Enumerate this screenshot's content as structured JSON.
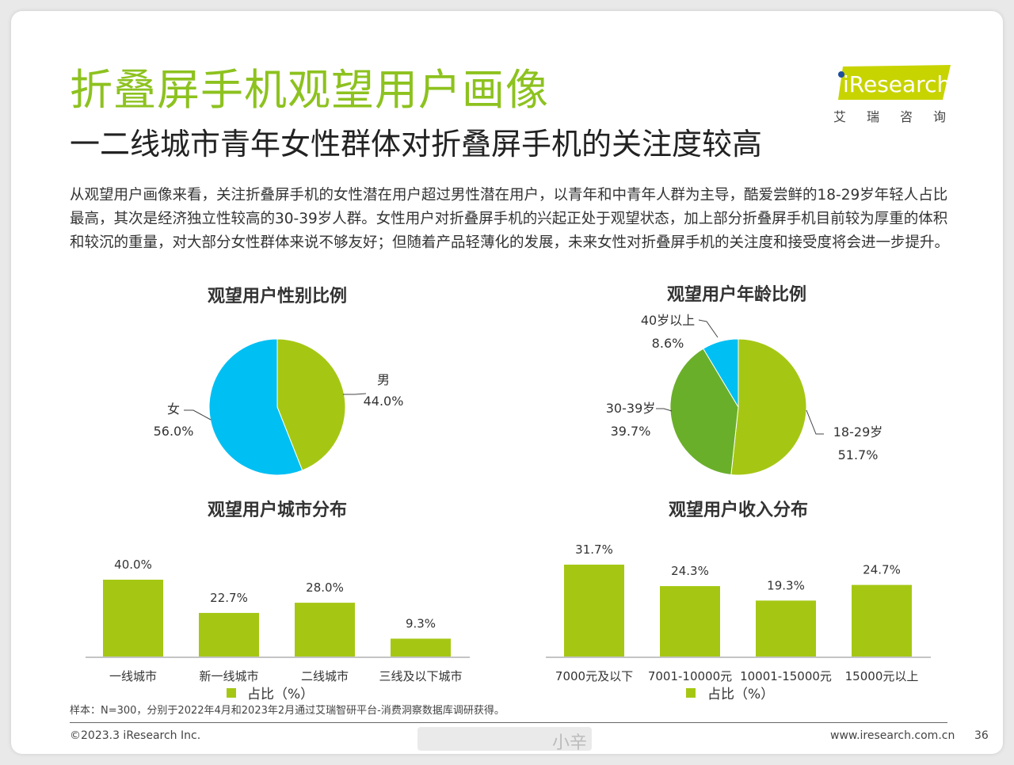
{
  "header": {
    "title": "折叠屏手机观望用户画像",
    "subtitle": "一二线城市青年女性群体对折叠屏手机的关注度较高",
    "description": "从观望用户画像来看，关注折叠屏手机的女性潜在用户超过男性潜在用户，以青年和中青年人群为主导，酷爱尝鲜的18-29岁年轻人占比最高，其次是经济独立性较高的30-39岁人群。女性用户对折叠屏手机的兴起正处于观望状态，加上部分折叠屏手机目前较为厚重的体积和较沉的重量，对大部分女性群体来说不够友好；但随着产品轻薄化的发展，未来女性对折叠屏手机的关注度和接受度将会进一步提升。"
  },
  "logo": {
    "text": "iResearch",
    "cn": "艾瑞咨询",
    "color": "#c8d400"
  },
  "colors": {
    "green": "#a5c714",
    "dark_green": "#6aaf2a",
    "cyan": "#00bff3"
  },
  "chart_data": [
    {
      "type": "pie",
      "title": "观望用户性别比例",
      "slices": [
        {
          "label": "男",
          "value": 44.0,
          "display": "44.0%",
          "color": "#a5c714"
        },
        {
          "label": "女",
          "value": 56.0,
          "display": "56.0%",
          "color": "#00bff3"
        }
      ]
    },
    {
      "type": "pie",
      "title": "观望用户年龄比例",
      "slices": [
        {
          "label": "18-29岁",
          "value": 51.7,
          "display": "51.7%",
          "color": "#a5c714"
        },
        {
          "label": "30-39岁",
          "value": 39.7,
          "display": "39.7%",
          "color": "#6aaf2a"
        },
        {
          "label": "40岁以上",
          "value": 8.6,
          "display": "8.6%",
          "color": "#00bff3"
        }
      ]
    },
    {
      "type": "bar",
      "title": "观望用户城市分布",
      "categories": [
        "一线城市",
        "新一线城市",
        "二线城市",
        "三线及以下城市"
      ],
      "values": [
        40.0,
        22.7,
        28.0,
        9.3
      ],
      "value_labels": [
        "40.0%",
        "22.7%",
        "28.0%",
        "9.3%"
      ],
      "legend": "占比（%）",
      "ylim": [
        0,
        40
      ]
    },
    {
      "type": "bar",
      "title": "观望用户收入分布",
      "categories": [
        "7000元及以下",
        "7001-10000元",
        "10001-15000元",
        "15000元以上"
      ],
      "values": [
        31.7,
        24.3,
        19.3,
        24.7
      ],
      "value_labels": [
        "31.7%",
        "24.3%",
        "19.3%",
        "24.7%"
      ],
      "legend": "占比（%）",
      "ylim": [
        0,
        31.7
      ]
    }
  ],
  "footer": {
    "note": "样本：N=300，分别于2022年4月和2023年2月通过艾瑞智研平台-消费洞察数据库调研获得。",
    "copyright": "©2023.3 iResearch Inc.",
    "website": "www.iresearch.com.cn",
    "page": "36",
    "watermark": "小辛"
  }
}
